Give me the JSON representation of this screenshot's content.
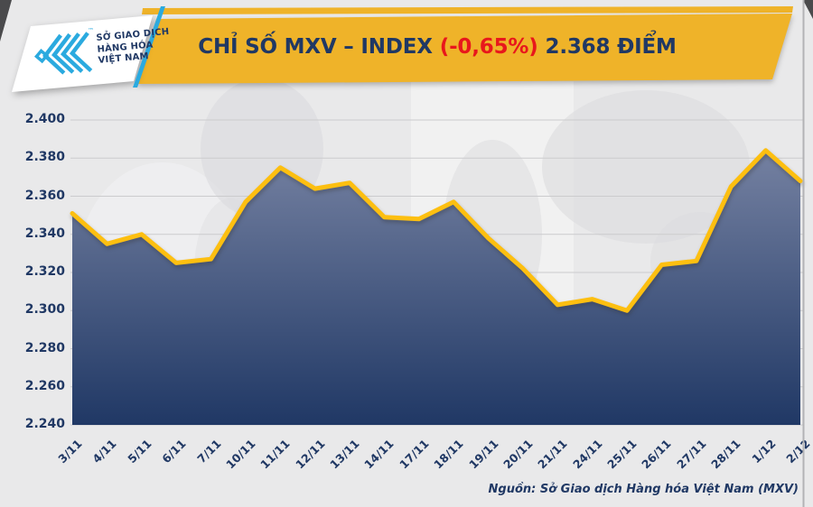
{
  "theme": {
    "page_bg": "#E9E9EA",
    "banner_yellow": "#EFB329",
    "line_yellow": "#FDBF10",
    "navy": "#203864",
    "red": "#E8171C",
    "cyan": "#2BAADF",
    "grid_color": "#CBCBCD",
    "card_white": "#FFFFFF",
    "border_line": "#B3B3B5",
    "corner_wedge": "#4A4A4C",
    "watermark_dark": "#DCDCDE",
    "watermark_light": "#F2F2F3"
  },
  "header": {
    "logo": {
      "line1": "SỞ GIAO DỊCH",
      "line2": "HÀNG HÓA",
      "line3": "VIỆT NAM",
      "trademark": "™",
      "chevron_icon": "mxv-chevrons"
    },
    "title": {
      "main": "CHỈ SỐ MXV – INDEX",
      "change": "(-0,65%)",
      "points": "2.368 ĐIỂM"
    }
  },
  "chart_data": {
    "type": "area",
    "title": "CHỈ SỐ MXV – INDEX",
    "subtitle_change_pct": "-0,65%",
    "latest_value_label": "2.368 ĐIỂM",
    "categories": [
      "3/11",
      "4/11",
      "5/11",
      "6/11",
      "7/11",
      "10/11",
      "11/11",
      "12/11",
      "13/11",
      "14/11",
      "17/11",
      "18/11",
      "19/11",
      "20/11",
      "21/11",
      "24/11",
      "25/11",
      "26/11",
      "27/11",
      "28/11",
      "1/12",
      "2/12"
    ],
    "values": [
      2351,
      2335,
      2340,
      2325,
      2327,
      2357,
      2375,
      2364,
      2367,
      2349,
      2348,
      2357,
      2338,
      2322,
      2303,
      2306,
      2300,
      2324,
      2326,
      2365,
      2384,
      2368
    ],
    "y_ticks": [
      {
        "label": "2.400",
        "v": 2400
      },
      {
        "label": "2.380",
        "v": 2380
      },
      {
        "label": "2.360",
        "v": 2360
      },
      {
        "label": "2.340",
        "v": 2340
      },
      {
        "label": "2.320",
        "v": 2320
      },
      {
        "label": "2.300",
        "v": 2300
      },
      {
        "label": "2.280",
        "v": 2280
      },
      {
        "label": "2.260",
        "v": 2260
      },
      {
        "label": "2.240",
        "v": 2240
      }
    ],
    "ylim": [
      2240,
      2400
    ],
    "grid": true,
    "legend": "none",
    "line_color": "#FDBF10",
    "area_top_color": "#7E89A8",
    "area_bottom_color": "#203865"
  },
  "footer": {
    "source": "Nguồn: Sở Giao dịch Hàng hóa Việt Nam (MXV)"
  }
}
